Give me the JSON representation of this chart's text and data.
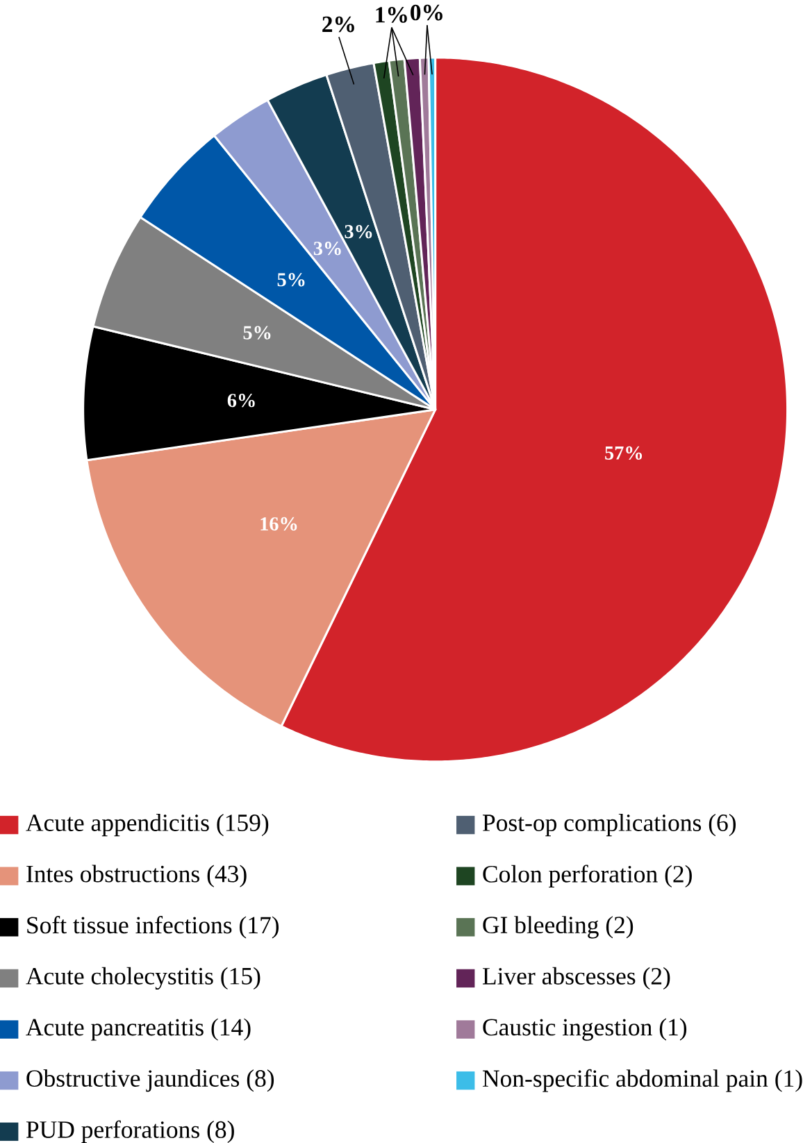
{
  "chart_data": {
    "type": "pie",
    "categories": [
      "Acute appendicitis (159)",
      "Intes obstructions (43)",
      "Soft tissue infections (17)",
      "Acute cholecystitis (15)",
      "Acute pancreatitis (14)",
      "Obstructive jaundices (8)",
      "PUD perforations (8)",
      "Post-op complications (6)",
      "Colon perforation (2)",
      "GI bleeding (2)",
      "Liver abscesses (2)",
      "Caustic ingestion (1)",
      "Non-specific abdominal pain (1)"
    ],
    "values": [
      57.2,
      15.5,
      6.1,
      5.4,
      5.0,
      2.9,
      2.9,
      2.2,
      0.7,
      0.7,
      0.7,
      0.4,
      0.3
    ],
    "colors": [
      "#d2232a",
      "#e5937a",
      "#000000",
      "#808080",
      "#0057a8",
      "#8e9bd0",
      "#133c50",
      "#4f5f72",
      "#1e4522",
      "#5a7455",
      "#622458",
      "#a07a9a",
      "#3cbde8"
    ],
    "value_labels": [
      "57%",
      "16%",
      "6%",
      "5%",
      "5%",
      "3%",
      "3%",
      "2%",
      "1%",
      null,
      null,
      "0%",
      null
    ],
    "legend": "bottom"
  }
}
